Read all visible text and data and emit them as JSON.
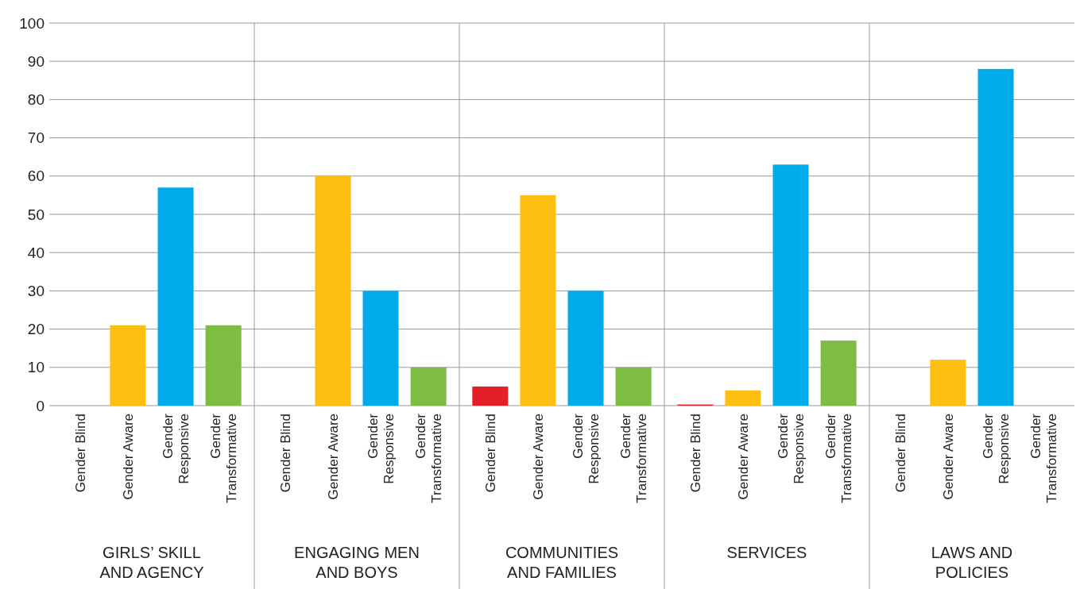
{
  "chart_data": {
    "type": "bar",
    "categories": [
      "Gender Blind",
      "Gender Aware",
      "Gender Responsive",
      "Gender Transformative",
      "Gender Blind",
      "Gender Aware",
      "Gender Responsive",
      "Gender Transformative",
      "Gender Blind",
      "Gender Aware",
      "Gender Responsive",
      "Gender Transformative",
      "Gender Blind",
      "Gender Aware",
      "Gender Responsive",
      "Gender Transformative",
      "Gender Blind",
      "Gender Aware",
      "Gender Responsive",
      "Gender Transformative"
    ],
    "values": [
      0,
      21,
      57,
      21,
      0,
      60,
      30,
      10,
      5,
      55,
      30,
      10,
      0.3,
      4,
      63,
      17,
      0,
      12,
      88,
      0
    ],
    "colors": [
      "#e3202a",
      "#fdc010",
      "#00abeb",
      "#7dbd41",
      "#e3202a",
      "#fdc010",
      "#00abeb",
      "#7dbd41",
      "#e3202a",
      "#fdc010",
      "#00abeb",
      "#7dbd41",
      "#e3202a",
      "#fdc010",
      "#00abeb",
      "#7dbd41",
      "#e3202a",
      "#fdc010",
      "#00abeb",
      "#7dbd41"
    ],
    "annotations": [
      "GIRLS’ SKILL AND AGENCY",
      "ENGAGING MEN AND BOYS",
      "COMMUNITIES AND FAMILIES",
      "SERVICES",
      "LAWS AND POLICIES"
    ],
    "ylim": [
      0,
      100
    ],
    "yticks": [
      0,
      10,
      20,
      30,
      40,
      50,
      60,
      70,
      80,
      90,
      100
    ],
    "grid": "y"
  }
}
